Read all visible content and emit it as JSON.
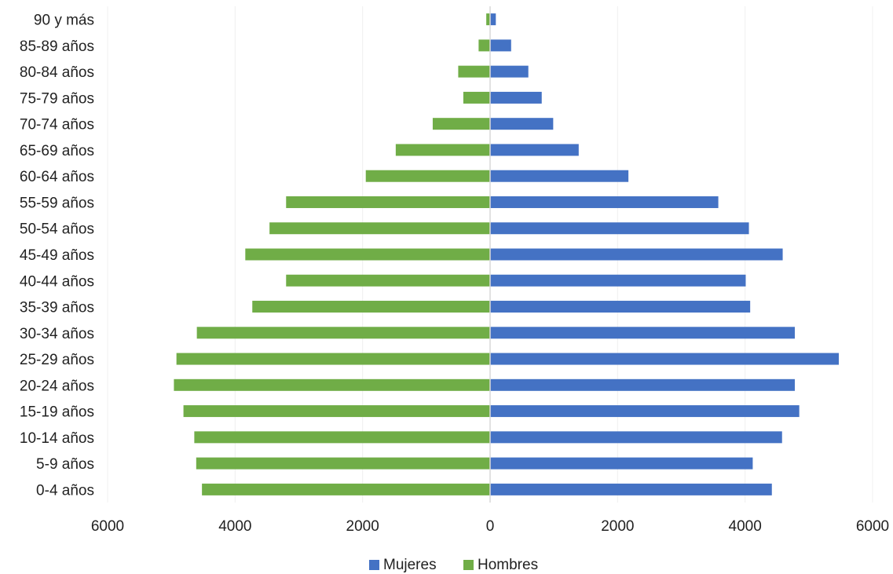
{
  "chart_data": {
    "type": "bar",
    "orientation": "horizontal",
    "layout": "population-pyramid",
    "categories": [
      "0-4 años",
      "5-9 años",
      "10-14 años",
      "15-19 años",
      "20-24 años",
      "25-29 años",
      "30-34 años",
      "35-39 años",
      "40-44 años",
      "45-49 años",
      "50-54 años",
      "55-59 años",
      "60-64 años",
      "65-69 años",
      "70-74 años",
      "75-79 años",
      "80-84 años",
      "85-89 años",
      "90 y más"
    ],
    "series": [
      {
        "name": "Mujeres",
        "side": "right",
        "color": "#4472C4",
        "values": [
          4420,
          4120,
          4580,
          4850,
          4780,
          5470,
          4780,
          4080,
          4010,
          4590,
          4060,
          3580,
          2170,
          1390,
          990,
          810,
          600,
          330,
          90
        ]
      },
      {
        "name": "Hombres",
        "side": "left",
        "color": "#70AD47",
        "values": [
          4520,
          4610,
          4640,
          4810,
          4960,
          4920,
          4600,
          3730,
          3200,
          3840,
          3460,
          3200,
          1950,
          1480,
          900,
          420,
          500,
          180,
          60
        ]
      }
    ],
    "xlim": [
      -6000,
      6000
    ],
    "xticks": [
      "6000",
      "4000",
      "2000",
      "0",
      "2000",
      "4000",
      "6000"
    ],
    "xlabel": "",
    "ylabel": "",
    "title": "",
    "grid": true,
    "legend_position": "bottom"
  }
}
